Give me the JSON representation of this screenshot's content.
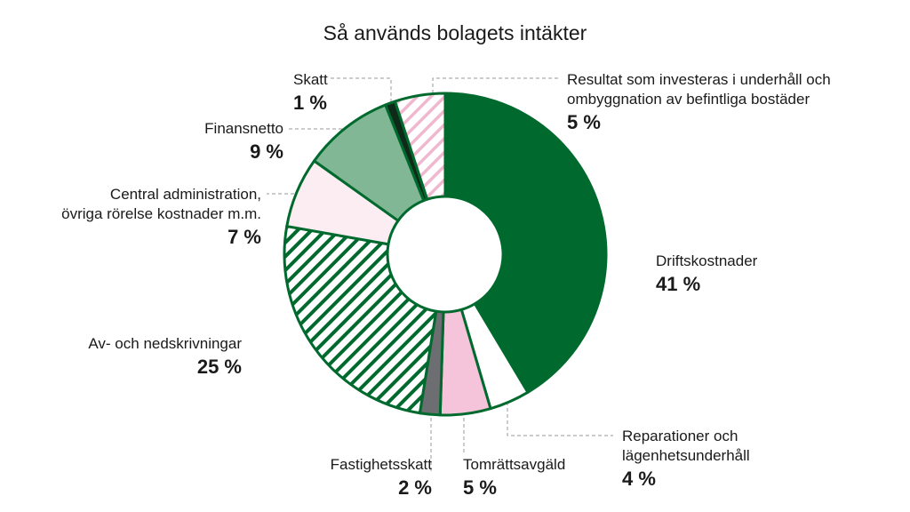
{
  "chart_data": {
    "type": "pie",
    "variant": "donut",
    "title": "Så används bolagets intäkter",
    "slices": [
      {
        "label": "Driftskostnader",
        "value": 41,
        "value_label": "41 %",
        "color": "#006a2e",
        "pattern": "solid"
      },
      {
        "label": "Reparationer och lägenhetsunderhåll",
        "label_lines": [
          "Reparationer och",
          "lägenhetsunderhåll"
        ],
        "value": 4,
        "value_label": "4 %",
        "color": "#ffffff",
        "pattern": "solid"
      },
      {
        "label": "Tomrättsavgäld",
        "label_lines": [
          "Tomrättsavgäld"
        ],
        "value": 5,
        "value_label": "5 %",
        "color": "#f5c4da",
        "pattern": "solid"
      },
      {
        "label": "Fastighetsskatt",
        "label_lines": [
          "Fastighetsskatt"
        ],
        "value": 2,
        "value_label": "2 %",
        "color": "#6d6e71",
        "pattern": "solid"
      },
      {
        "label": "Av- och nedskrivningar",
        "label_lines": [
          "Av- och nedskrivningar"
        ],
        "value": 25,
        "value_label": "25 %",
        "color": "#006a2e",
        "pattern": "hatch-green"
      },
      {
        "label": "Central administration, övriga rörelse kostnader m.m.",
        "label_lines": [
          "Central administration,",
          "övriga rörelse kostnader m.m."
        ],
        "value": 7,
        "value_label": "7 %",
        "color": "#fcedf2",
        "pattern": "solid"
      },
      {
        "label": "Finansnetto",
        "label_lines": [
          "Finansnetto"
        ],
        "value": 9,
        "value_label": "9 %",
        "color": "#82b796",
        "pattern": "solid"
      },
      {
        "label": "Skatt",
        "label_lines": [
          "Skatt"
        ],
        "value": 1,
        "value_label": "1 %",
        "color": "#0f2a18",
        "pattern": "solid"
      },
      {
        "label": "Resultat som investeras i underhåll och ombyggnation av befintliga bostäder",
        "label_lines": [
          "Resultat som investeras i underhåll och",
          "ombyggnation av befintliga bostäder"
        ],
        "value": 5,
        "value_label": "5 %",
        "color": "#f5c4da",
        "pattern": "hatch-pink"
      }
    ],
    "border_color": "#006a2e",
    "legend": "none"
  }
}
